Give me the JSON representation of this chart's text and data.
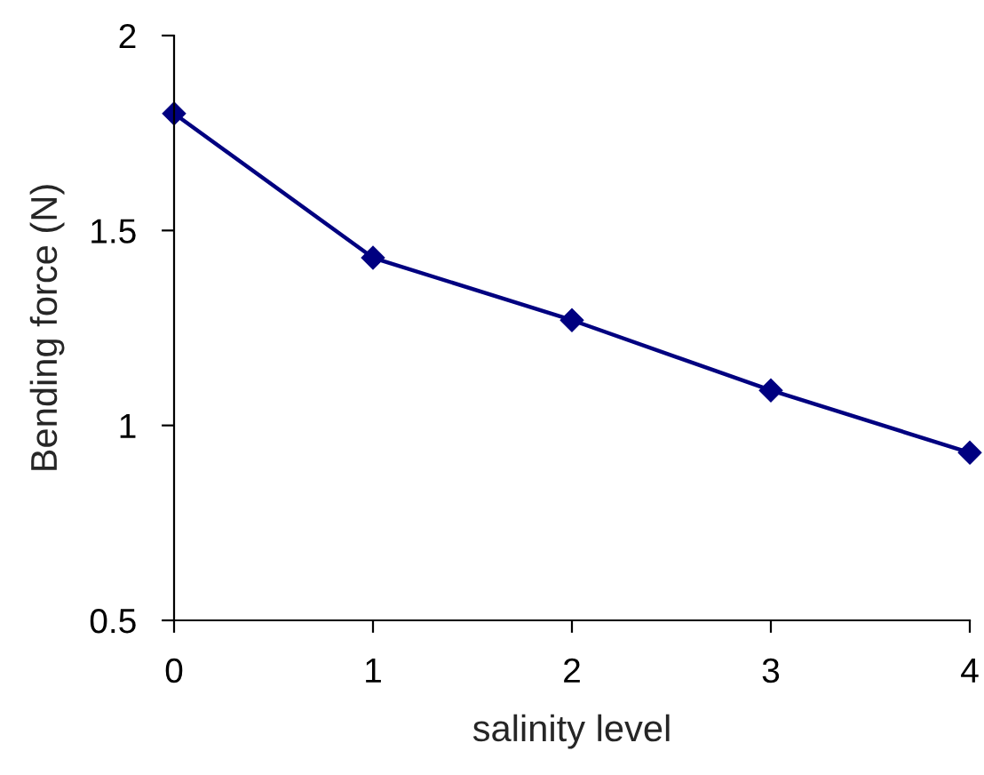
{
  "chart_data": {
    "type": "line",
    "xlabel": "salinity level",
    "ylabel": "Bending force (N)",
    "x": [
      0,
      1,
      2,
      3,
      4
    ],
    "series": [
      {
        "color": "#000080",
        "values": [
          1.8,
          1.43,
          1.27,
          1.09,
          0.93
        ]
      }
    ],
    "xlim": [
      0,
      4
    ],
    "xticks": [
      0,
      1,
      2,
      3,
      4
    ],
    "ylim": [
      0.5,
      2
    ],
    "yticks": [
      0.5,
      1,
      1.5,
      2
    ],
    "marker": "diamond",
    "line_style": "solid",
    "grid": false,
    "legend": false
  }
}
